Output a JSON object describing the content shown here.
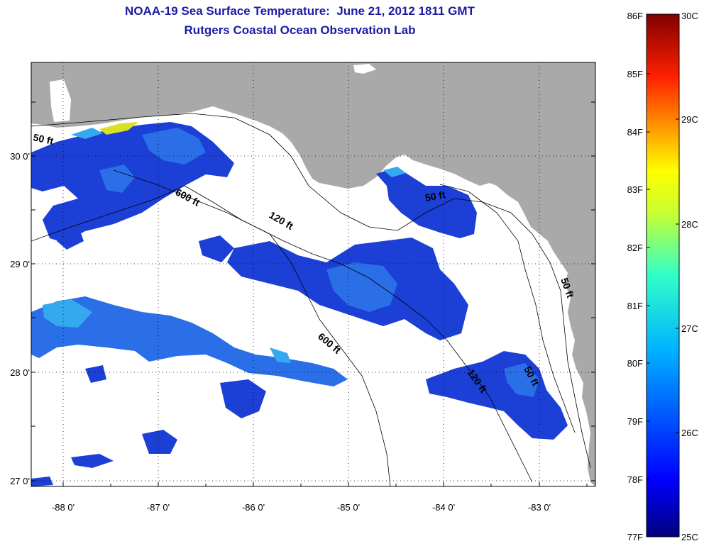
{
  "title_line1": "NOAA-19 Sea Surface Temperature:  June 21, 2012 1811 GMT",
  "title_line2": "Rutgers Coastal Ocean Observation Lab",
  "x_ticks": [
    "-88 0'",
    "-87 0'",
    "-86 0'",
    "-85 0'",
    "-84 0'",
    "-83 0'"
  ],
  "y_ticks": [
    "30 0'",
    "29 0'",
    "28 0'",
    "27 0'"
  ],
  "contour_labels": {
    "c50_west": "50 ft",
    "c600_north": "600 ft",
    "c120": "120 ft",
    "c50_east": "50 ft",
    "c600_south": "600 ft",
    "c120_south": "120 ft",
    "c50_south": "50 ft",
    "c50_coast": "50 ft"
  },
  "colorbar": {
    "f_labels": [
      "86F",
      "85F",
      "84F",
      "83F",
      "82F",
      "81F",
      "80F",
      "79F",
      "78F",
      "77F"
    ],
    "c_labels": [
      "30C",
      "29C",
      "28C",
      "27C",
      "26C",
      "25C"
    ]
  },
  "colors": {
    "land": "#a9a9a9",
    "ocean": "#ffffff",
    "sst_cold": "#1c3fd6",
    "sst_mid": "#2a6ee8",
    "sst_warm": "#35a9f0",
    "sst_hot": "#d8e020",
    "title": "#1a1aa6"
  }
}
